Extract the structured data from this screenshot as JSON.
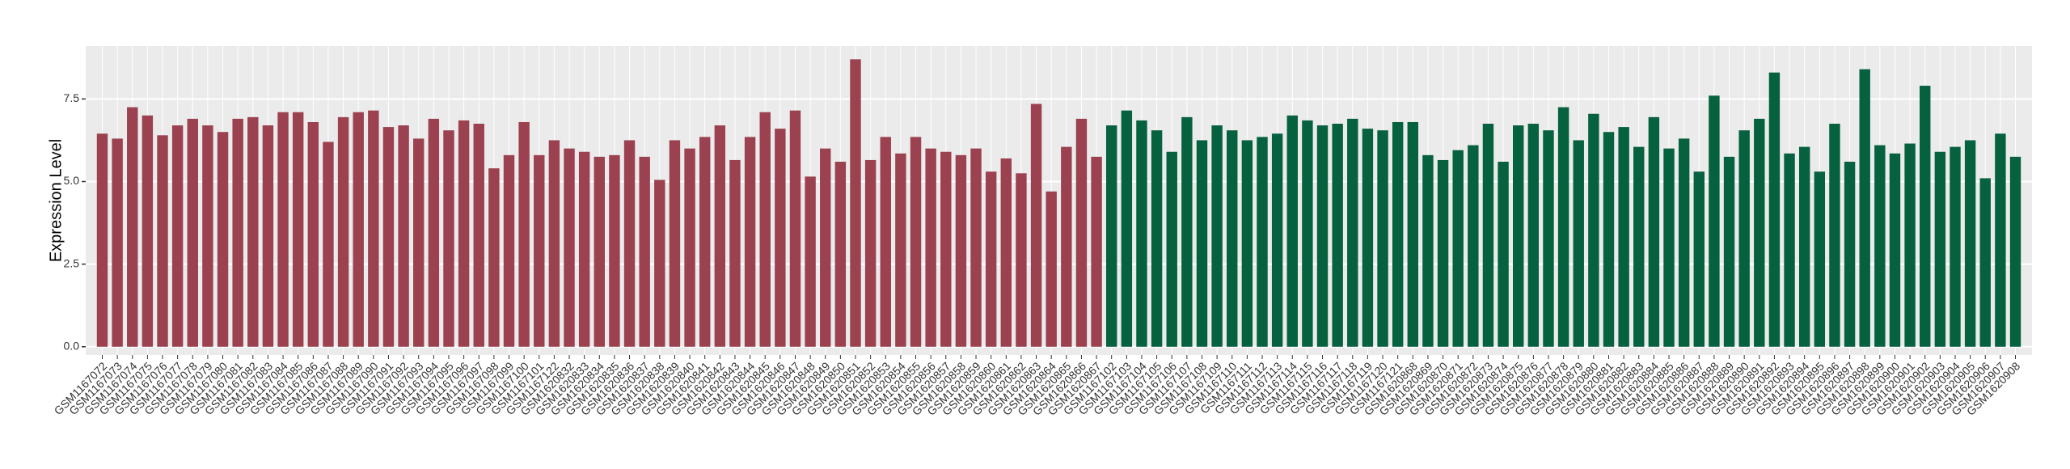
{
  "chart_data": {
    "type": "bar",
    "y_label": "Expression Level",
    "ylim": [
      -0.25,
      9.1
    ],
    "yticks": [
      {
        "value": 0,
        "label": "0.0"
      },
      2.5,
      {
        "value": 5,
        "label": "5.0"
      },
      7.5
    ],
    "grid": true,
    "categories": [
      "GSM1167072",
      "GSM1167073",
      "GSM1167074",
      "GSM1167075",
      "GSM1167076",
      "GSM1167077",
      "GSM1167078",
      "GSM1167079",
      "GSM1167080",
      "GSM1167081",
      "GSM1167082",
      "GSM1167083",
      "GSM1167084",
      "GSM1167085",
      "GSM1167086",
      "GSM1167087",
      "GSM1167088",
      "GSM1167089",
      "GSM1167090",
      "GSM1167091",
      "GSM1167092",
      "GSM1167093",
      "GSM1167094",
      "GSM1167095",
      "GSM1167096",
      "GSM1167097",
      "GSM1167098",
      "GSM1167099",
      "GSM1167100",
      "GSM1167101",
      "GSM1167122",
      "GSM1620832",
      "GSM1620833",
      "GSM1620834",
      "GSM1620835",
      "GSM1620836",
      "GSM1620837",
      "GSM1620838",
      "GSM1620839",
      "GSM1620840",
      "GSM1620841",
      "GSM1620842",
      "GSM1620843",
      "GSM1620844",
      "GSM1620845",
      "GSM1620846",
      "GSM1620847",
      "GSM1620848",
      "GSM1620849",
      "GSM1620850",
      "GSM1620851",
      "GSM1620852",
      "GSM1620853",
      "GSM1620854",
      "GSM1620855",
      "GSM1620856",
      "GSM1620857",
      "GSM1620858",
      "GSM1620859",
      "GSM1620860",
      "GSM1620861",
      "GSM1620862",
      "GSM1620863",
      "GSM1620864",
      "GSM1620865",
      "GSM1620866",
      "GSM1620867",
      "GSM1167102",
      "GSM1167103",
      "GSM1167104",
      "GSM1167105",
      "GSM1167106",
      "GSM1167107",
      "GSM1167108",
      "GSM1167109",
      "GSM1167110",
      "GSM1167111",
      "GSM1167112",
      "GSM1167113",
      "GSM1167114",
      "GSM1167115",
      "GSM1167116",
      "GSM1167117",
      "GSM1167118",
      "GSM1167119",
      "GSM1167120",
      "GSM1167121",
      "GSM1620868",
      "GSM1620869",
      "GSM1620870",
      "GSM1620871",
      "GSM1620872",
      "GSM1620873",
      "GSM1620874",
      "GSM1620875",
      "GSM1620876",
      "GSM1620877",
      "GSM1620878",
      "GSM1620879",
      "GSM1620880",
      "GSM1620881",
      "GSM1620882",
      "GSM1620883",
      "GSM1620884",
      "GSM1620885",
      "GSM1620886",
      "GSM1620887",
      "GSM1620888",
      "GSM1620889",
      "GSM1620890",
      "GSM1620891",
      "GSM1620892",
      "GSM1620893",
      "GSM1620894",
      "GSM1620895",
      "GSM1620896",
      "GSM1620897",
      "GSM1620898",
      "GSM1620899",
      "GSM1620900",
      "GSM1620901",
      "GSM1620902",
      "GSM1620903",
      "GSM1620904",
      "GSM1620905",
      "GSM1620906",
      "GSM1620907",
      "GSM1620908"
    ],
    "values": [
      6.45,
      6.3,
      7.25,
      7.0,
      6.4,
      6.7,
      6.9,
      6.7,
      6.5,
      6.9,
      6.95,
      6.7,
      7.1,
      7.1,
      6.8,
      6.2,
      6.95,
      7.1,
      7.15,
      6.65,
      6.7,
      6.3,
      6.9,
      6.55,
      6.85,
      6.75,
      5.4,
      5.8,
      6.8,
      5.8,
      6.25,
      6.0,
      5.9,
      5.75,
      5.8,
      6.25,
      5.75,
      5.05,
      6.25,
      6.0,
      6.35,
      6.7,
      5.65,
      6.35,
      7.1,
      6.6,
      7.15,
      5.15,
      6.0,
      5.6,
      8.7,
      5.65,
      6.35,
      5.85,
      6.35,
      6.0,
      5.9,
      5.8,
      6.0,
      5.3,
      5.7,
      5.25,
      7.35,
      4.7,
      6.05,
      6.9,
      5.75,
      6.7,
      7.15,
      6.85,
      6.55,
      5.9,
      6.95,
      6.25,
      6.7,
      6.55,
      6.25,
      6.35,
      6.45,
      7.0,
      6.85,
      6.7,
      6.75,
      6.9,
      6.6,
      6.55,
      6.8,
      6.8,
      5.8,
      5.65,
      5.95,
      6.1,
      6.75,
      5.6,
      6.7,
      6.75,
      6.55,
      7.25,
      6.25,
      7.05,
      6.5,
      6.65,
      6.05,
      6.95,
      6.0,
      6.3,
      5.3,
      7.6,
      5.75,
      6.55,
      6.9,
      8.3,
      5.85,
      6.05,
      5.3,
      6.75,
      5.6,
      8.4,
      6.1,
      5.85,
      6.15,
      7.9,
      5.9,
      6.05,
      6.25,
      5.1,
      6.45,
      5.75
    ],
    "colors": [
      "#9b4150",
      "#9b4150",
      "#9b4150",
      "#9b4150",
      "#9b4150",
      "#9b4150",
      "#9b4150",
      "#9b4150",
      "#9b4150",
      "#9b4150",
      "#9b4150",
      "#9b4150",
      "#9b4150",
      "#9b4150",
      "#9b4150",
      "#9b4150",
      "#9b4150",
      "#9b4150",
      "#9b4150",
      "#9b4150",
      "#9b4150",
      "#9b4150",
      "#9b4150",
      "#9b4150",
      "#9b4150",
      "#9b4150",
      "#9b4150",
      "#9b4150",
      "#9b4150",
      "#9b4150",
      "#9b4150",
      "#9b4150",
      "#9b4150",
      "#9b4150",
      "#9b4150",
      "#9b4150",
      "#9b4150",
      "#9b4150",
      "#9b4150",
      "#9b4150",
      "#9b4150",
      "#9b4150",
      "#9b4150",
      "#9b4150",
      "#9b4150",
      "#9b4150",
      "#9b4150",
      "#9b4150",
      "#9b4150",
      "#9b4150",
      "#9b4150",
      "#9b4150",
      "#9b4150",
      "#9b4150",
      "#9b4150",
      "#9b4150",
      "#9b4150",
      "#9b4150",
      "#9b4150",
      "#9b4150",
      "#9b4150",
      "#9b4150",
      "#9b4150",
      "#9b4150",
      "#9b4150",
      "#9b4150",
      "#9b4150",
      "#06613f",
      "#06613f",
      "#06613f",
      "#06613f",
      "#06613f",
      "#06613f",
      "#06613f",
      "#06613f",
      "#06613f",
      "#06613f",
      "#06613f",
      "#06613f",
      "#06613f",
      "#06613f",
      "#06613f",
      "#06613f",
      "#06613f",
      "#06613f",
      "#06613f",
      "#06613f",
      "#06613f",
      "#06613f",
      "#06613f",
      "#06613f",
      "#06613f",
      "#06613f",
      "#06613f",
      "#06613f",
      "#06613f",
      "#06613f",
      "#06613f",
      "#06613f",
      "#06613f",
      "#06613f",
      "#06613f",
      "#06613f",
      "#06613f",
      "#06613f",
      "#06613f",
      "#06613f",
      "#06613f",
      "#06613f",
      "#06613f",
      "#06613f",
      "#06613f",
      "#06613f",
      "#06613f",
      "#06613f",
      "#06613f",
      "#06613f",
      "#06613f",
      "#06613f",
      "#06613f",
      "#06613f",
      "#06613f",
      "#06613f",
      "#06613f",
      "#06613f",
      "#06613f",
      "#06613f",
      "#06613f"
    ]
  }
}
